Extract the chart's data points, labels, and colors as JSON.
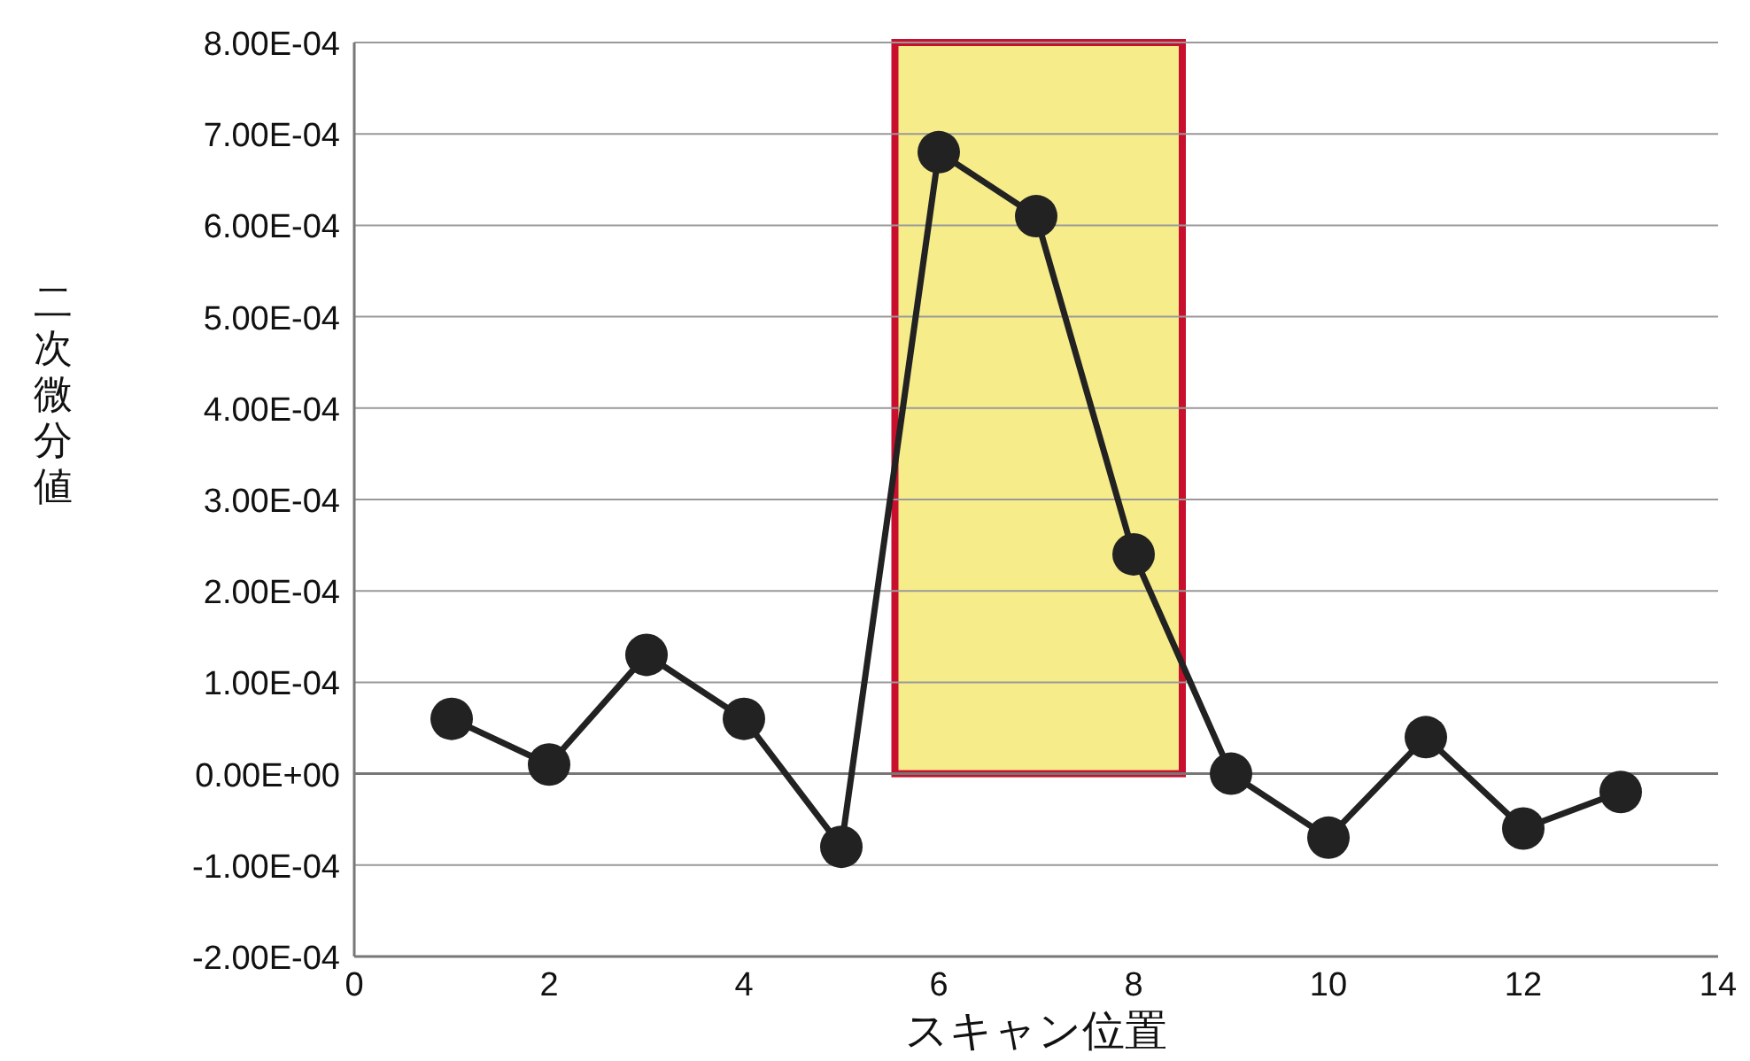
{
  "chart_data": {
    "type": "line",
    "xlabel": "スキャン位置",
    "ylabel": "二次微分値",
    "x": [
      1,
      2,
      3,
      4,
      5,
      6,
      7,
      8,
      9,
      10,
      11,
      12,
      13
    ],
    "series": [
      {
        "color": "#222222",
        "values": [
          6e-05,
          1e-05,
          0.00013,
          6e-05,
          -8e-05,
          0.00068,
          0.00061,
          0.00024,
          0,
          -7e-05,
          4e-05,
          -6e-05,
          -2e-05
        ]
      }
    ],
    "marker": "circle",
    "line_style": "solid",
    "grid": "y",
    "xlim": [
      0,
      14
    ],
    "xticks": [
      0,
      2,
      4,
      6,
      8,
      10,
      12,
      14
    ],
    "ylim": [
      -0.0002,
      0.0008
    ],
    "yticks": [
      {
        "value": -0.0002,
        "label": "-2.00E-04"
      },
      {
        "value": -0.0001,
        "label": "-1.00E-04"
      },
      {
        "value": 0,
        "label": "0.00E+00"
      },
      {
        "value": 0.0001,
        "label": "1.00E-04"
      },
      {
        "value": 0.0002,
        "label": "2.00E-04"
      },
      {
        "value": 0.0003,
        "label": "3.00E-04"
      },
      {
        "value": 0.0004,
        "label": "4.00E-04"
      },
      {
        "value": 0.0005,
        "label": "5.00E-04"
      },
      {
        "value": 0.0006,
        "label": "6.00E-04"
      },
      {
        "value": 0.0007,
        "label": "7.00E-04"
      },
      {
        "value": 0.0008,
        "label": "8.00E-04"
      }
    ],
    "bands": [
      {
        "axis": "x",
        "from": 5.55,
        "to": 8.5,
        "color": "#f7ec8a"
      }
    ]
  }
}
